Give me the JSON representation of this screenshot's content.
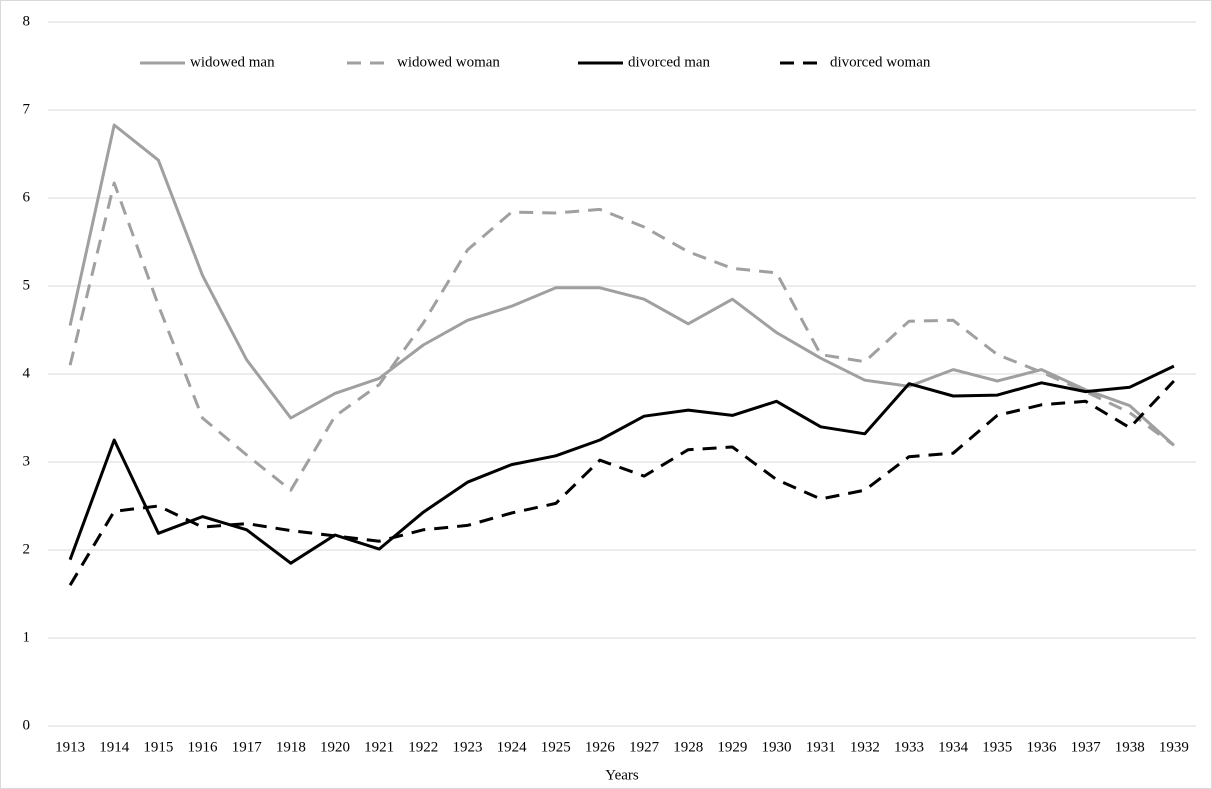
{
  "chart_data": {
    "type": "line",
    "xlabel": "Years",
    "categories": [
      "1913",
      "1914",
      "1915",
      "1916",
      "1917",
      "1918",
      "1920",
      "1921",
      "1922",
      "1923",
      "1924",
      "1925",
      "1926",
      "1927",
      "1928",
      "1929",
      "1930",
      "1931",
      "1932",
      "1933",
      "1934",
      "1935",
      "1936",
      "1937",
      "1938",
      "1939"
    ],
    "series": [
      {
        "name": "widowed man",
        "color": "#a0a0a0",
        "dashed": false,
        "values": [
          4.55,
          6.83,
          6.43,
          5.12,
          4.16,
          3.5,
          3.78,
          3.95,
          4.33,
          4.61,
          4.77,
          4.98,
          4.98,
          4.85,
          4.57,
          4.85,
          4.47,
          4.18,
          3.93,
          3.86,
          4.05,
          3.92,
          4.05,
          3.82,
          3.64,
          3.19
        ]
      },
      {
        "name": "widowed woman",
        "color": "#a0a0a0",
        "dashed": true,
        "values": [
          4.1,
          6.17,
          4.78,
          3.5,
          3.08,
          2.68,
          3.52,
          3.88,
          4.58,
          5.41,
          5.84,
          5.83,
          5.87,
          5.67,
          5.39,
          5.2,
          5.15,
          4.22,
          4.14,
          4.6,
          4.61,
          4.22,
          4.02,
          3.8,
          3.56,
          3.19
        ]
      },
      {
        "name": "divorced man",
        "color": "#000000",
        "dashed": false,
        "values": [
          1.89,
          3.25,
          2.19,
          2.38,
          2.23,
          1.85,
          2.17,
          2.01,
          2.43,
          2.77,
          2.97,
          3.07,
          3.25,
          3.52,
          3.59,
          3.53,
          3.69,
          3.4,
          3.32,
          3.89,
          3.75,
          3.76,
          3.9,
          3.8,
          3.85,
          4.09
        ]
      },
      {
        "name": "divorced woman",
        "color": "#000000",
        "dashed": true,
        "values": [
          1.6,
          2.44,
          2.5,
          2.26,
          2.3,
          2.22,
          2.16,
          2.1,
          2.23,
          2.28,
          2.42,
          2.53,
          3.02,
          2.84,
          3.14,
          3.17,
          2.8,
          2.58,
          2.68,
          3.06,
          3.1,
          3.53,
          3.65,
          3.69,
          3.39,
          3.92
        ]
      }
    ],
    "ylim": [
      0,
      8
    ],
    "yticks": [
      0,
      1,
      2,
      3,
      4,
      5,
      6,
      7,
      8
    ],
    "grid": true,
    "legend": "top"
  }
}
